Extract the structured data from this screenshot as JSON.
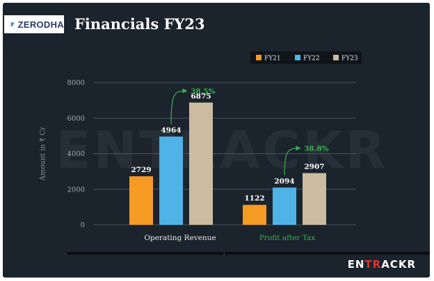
{
  "brand": {
    "name": "ZERODHA"
  },
  "chart_data": {
    "type": "bar",
    "title": "Financials FY23",
    "ylabel": "Amount in ₹ Cr",
    "xlabel": "",
    "ylim": [
      0,
      8000
    ],
    "yticks": [
      "0",
      "2000",
      "4000",
      "6000",
      "8000"
    ],
    "grid": true,
    "legend_position": "top-right",
    "categories": [
      "Operating Revenue",
      "Profit after Tax"
    ],
    "series": [
      {
        "name": "FY21",
        "values": [
          2729,
          1122
        ],
        "color": "#f59a23"
      },
      {
        "name": "FY22",
        "values": [
          4964,
          2094
        ],
        "color": "#4fb3e8"
      },
      {
        "name": "FY23",
        "values": [
          6875,
          2907
        ],
        "color": "#cbbba0"
      }
    ],
    "value_labels": [
      [
        "2729",
        "1122"
      ],
      [
        "4964",
        "2094"
      ],
      [
        "6875",
        "2907"
      ]
    ],
    "annotations": [
      {
        "category": "Operating Revenue",
        "text": "38.5%"
      },
      {
        "category": "Profit after Tax",
        "text": "38.8%"
      }
    ],
    "category_label_colors": [
      "#e8e8e8",
      "#37b24d"
    ]
  },
  "watermark": "ENTRACKR",
  "footer": {
    "logo_prefix": "EN",
    "logo_accent": "TR",
    "logo_suffix": "ACKR"
  },
  "colors": {
    "background": "#1b232d",
    "growth": "#37b24d"
  }
}
